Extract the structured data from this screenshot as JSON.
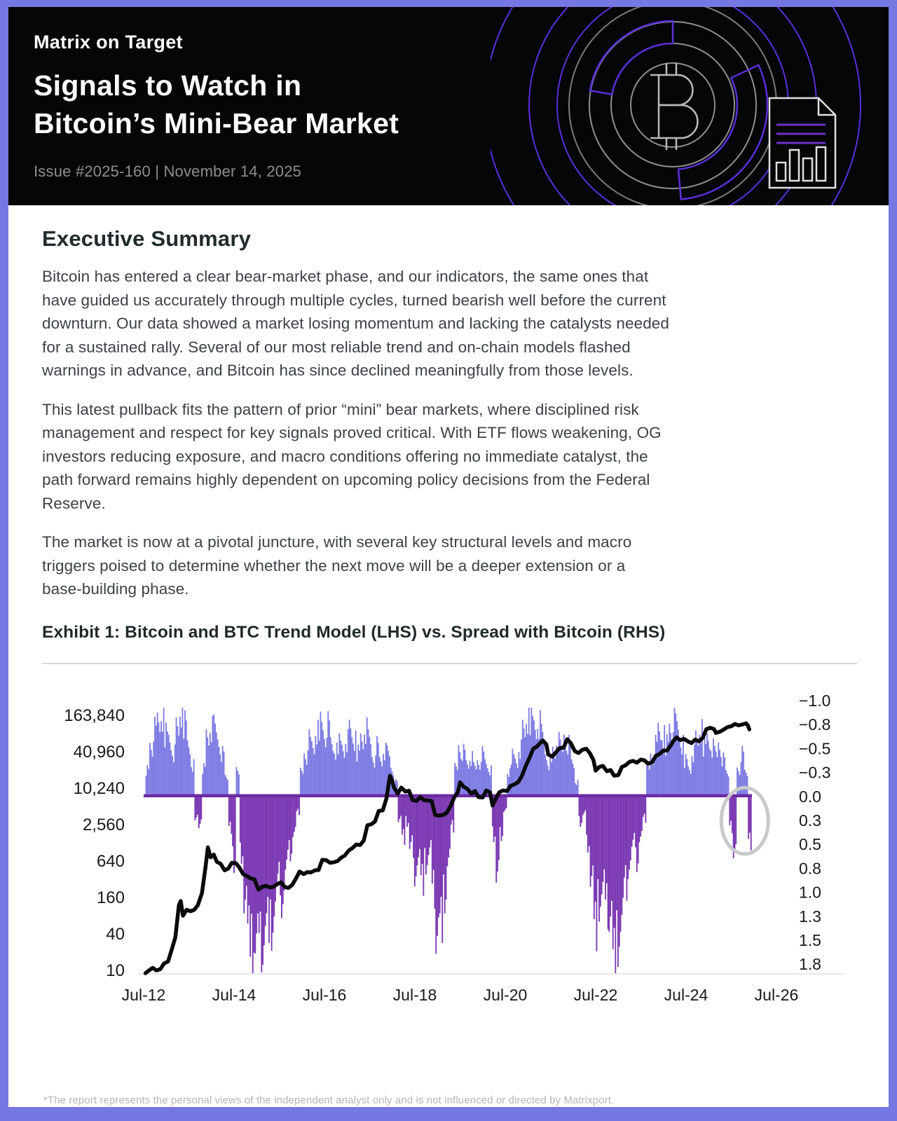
{
  "page": {
    "border_color": "#7577e2",
    "footer_note": "*The report represents the personal views of the independent analyst only and is not influenced or directed by Matrixport."
  },
  "header": {
    "kicker": "Matrix on Target",
    "title": "Signals to Watch in\nBitcoin’s Mini-Bear Market",
    "issue_line": "Issue #2025-160 | November 14, 2025"
  },
  "summary": {
    "heading": "Executive Summary",
    "paragraphs": [
      "Bitcoin has entered a clear bear-market phase, and our indicators, the same ones that\nhave guided us accurately through multiple cycles, turned bearish well before the current\ndownturn. Our data showed a market losing momentum and lacking the catalysts needed\nfor a sustained rally. Several of our most reliable trend and on-chain models flashed\nwarnings in advance, and Bitcoin has since declined meaningfully from those levels.",
      "This latest pullback fits the pattern of prior “mini” bear markets, where disciplined risk\nmanagement and respect for key signals proved critical. With ETF flows weakening, OG\ninvestors reducing exposure, and macro conditions offering no immediate catalyst, the\npath forward remains highly dependent on upcoming policy decisions from the Federal\nReserve.",
      "The market is now at a pivotal juncture, with several key structural levels and macro\ntriggers poised to determine whether the next move will be a deeper extension or a\nbase-building phase."
    ]
  },
  "exhibit": {
    "title": "Exhibit 1: Bitcoin and BTC Trend Model (LHS) vs. Spread with Bitcoin (RHS)"
  },
  "chart_data": {
    "type": "bar+line",
    "title": "Exhibit 1: Bitcoin and BTC Trend Model (LHS) vs. Spread with Bitcoin (RHS)",
    "grid": false,
    "legend": "none",
    "left_axis": {
      "series": "Bitcoin price (USD, log scale)",
      "scale": "log4",
      "ticks": [
        "163,840",
        "40,960",
        "10,240",
        "2,560",
        "640",
        "160",
        "40",
        "10"
      ],
      "tick_values": [
        163840,
        40960,
        10240,
        2560,
        640,
        160,
        40,
        10
      ]
    },
    "right_axis": {
      "series": "Spread with Bitcoin",
      "inverted": true,
      "ticks": [
        "−1.0",
        "−0.8",
        "−0.5",
        "−0.3",
        "0.0",
        "0.3",
        "0.5",
        "0.8",
        "1.0",
        "1.3",
        "1.5",
        "1.8"
      ],
      "tick_values": [
        -1.0,
        -0.75,
        -0.5,
        -0.25,
        0.0,
        0.25,
        0.5,
        0.75,
        1.0,
        1.25,
        1.5,
        1.75
      ]
    },
    "x_axis": {
      "ticks": [
        "Jul-12",
        "Jul-14",
        "Jul-16",
        "Jul-18",
        "Jul-20",
        "Jul-22",
        "Jul-24",
        "Jul-26"
      ],
      "tick_values": [
        2012.5,
        2014.5,
        2016.5,
        2018.5,
        2020.5,
        2022.5,
        2024.5,
        2026.5
      ]
    },
    "spread_bars": {
      "name": "BTC Trend Model spread with Bitcoin (RHS, inverted; blue = negative, purple = positive)",
      "negative_color": "#7e7ce3",
      "positive_color": "#7a38b2",
      "zero_line_color": "#6c2ba3",
      "start": 2012.54,
      "step": 0.0833,
      "values": [
        -0.3,
        -0.55,
        -0.7,
        -0.78,
        -0.85,
        -0.7,
        -0.62,
        -0.5,
        -0.72,
        -0.88,
        -0.8,
        -0.55,
        -0.35,
        0.22,
        0.35,
        -0.3,
        -0.65,
        -0.75,
        -0.72,
        -0.6,
        -0.45,
        -0.2,
        0.35,
        0.75,
        -0.3,
        0.6,
        1.1,
        1.45,
        1.7,
        1.6,
        1.72,
        1.55,
        1.3,
        1.45,
        1.2,
        0.95,
        1.1,
        0.8,
        0.6,
        0.4,
        0.18,
        -0.25,
        -0.45,
        -0.6,
        -0.52,
        -0.7,
        -0.82,
        -0.68,
        -0.75,
        -0.55,
        -0.48,
        -0.6,
        -0.52,
        -0.65,
        -0.7,
        -0.58,
        -0.48,
        -0.62,
        -0.75,
        -0.6,
        -0.42,
        -0.55,
        -0.38,
        -0.5,
        -0.45,
        -0.3,
        -0.15,
        0.25,
        0.45,
        0.3,
        0.55,
        0.8,
        0.65,
        0.9,
        0.75,
        0.6,
        1.1,
        1.45,
        1.3,
        1.1,
        0.7,
        0.35,
        -0.3,
        -0.55,
        -0.48,
        -0.35,
        -0.42,
        -0.3,
        -0.38,
        -0.45,
        -0.35,
        -0.28,
        0.45,
        0.9,
        0.4,
        0.15,
        -0.25,
        -0.45,
        -0.38,
        -0.55,
        -0.7,
        -0.8,
        -0.85,
        -0.75,
        -0.82,
        -0.65,
        -0.45,
        -0.35,
        -0.48,
        -0.6,
        -0.5,
        -0.65,
        -0.55,
        -0.35,
        -0.15,
        0.3,
        0.2,
        0.5,
        0.85,
        1.4,
        1.2,
        1.0,
        1.3,
        1.25,
        1.7,
        1.6,
        1.35,
        1.0,
        0.75,
        0.55,
        0.7,
        0.45,
        0.25,
        -0.3,
        -0.45,
        -0.55,
        -0.7,
        -0.65,
        -0.6,
        -0.75,
        -0.82,
        -0.7,
        -0.55,
        -0.4,
        -0.3,
        -0.5,
        -0.6,
        -0.68,
        -0.55,
        -0.62,
        -0.55,
        -0.45,
        -0.58,
        -0.4,
        -0.25,
        0.35,
        0.55,
        -0.3,
        -0.45,
        -0.25,
        0.5
      ]
    },
    "price_line": {
      "name": "Bitcoin (USD, LHS)",
      "color": "#0a0a0a",
      "points": [
        [
          2012.54,
          9
        ],
        [
          2012.62,
          10
        ],
        [
          2012.7,
          11
        ],
        [
          2012.78,
          10
        ],
        [
          2012.87,
          10.5
        ],
        [
          2012.95,
          13
        ],
        [
          2013.04,
          14
        ],
        [
          2013.12,
          22
        ],
        [
          2013.2,
          35
        ],
        [
          2013.28,
          120
        ],
        [
          2013.32,
          140
        ],
        [
          2013.37,
          80
        ],
        [
          2013.45,
          100
        ],
        [
          2013.54,
          95
        ],
        [
          2013.62,
          100
        ],
        [
          2013.7,
          120
        ],
        [
          2013.79,
          190
        ],
        [
          2013.87,
          520
        ],
        [
          2013.92,
          1080
        ],
        [
          2013.98,
          740
        ],
        [
          2014.05,
          820
        ],
        [
          2014.12,
          620
        ],
        [
          2014.2,
          580
        ],
        [
          2014.29,
          450
        ],
        [
          2014.37,
          480
        ],
        [
          2014.45,
          600
        ],
        [
          2014.54,
          590
        ],
        [
          2014.62,
          500
        ],
        [
          2014.7,
          390
        ],
        [
          2014.79,
          360
        ],
        [
          2014.87,
          330
        ],
        [
          2014.95,
          320
        ],
        [
          2015.04,
          215
        ],
        [
          2015.12,
          240
        ],
        [
          2015.2,
          250
        ],
        [
          2015.29,
          235
        ],
        [
          2015.37,
          240
        ],
        [
          2015.45,
          265
        ],
        [
          2015.54,
          285
        ],
        [
          2015.62,
          240
        ],
        [
          2015.7,
          230
        ],
        [
          2015.79,
          260
        ],
        [
          2015.87,
          330
        ],
        [
          2015.95,
          430
        ],
        [
          2016.04,
          390
        ],
        [
          2016.12,
          420
        ],
        [
          2016.2,
          415
        ],
        [
          2016.29,
          450
        ],
        [
          2016.37,
          455
        ],
        [
          2016.45,
          670
        ],
        [
          2016.54,
          660
        ],
        [
          2016.62,
          600
        ],
        [
          2016.7,
          610
        ],
        [
          2016.79,
          640
        ],
        [
          2016.87,
          730
        ],
        [
          2016.95,
          790
        ],
        [
          2017.04,
          960
        ],
        [
          2017.12,
          1050
        ],
        [
          2017.2,
          1200
        ],
        [
          2017.29,
          1180
        ],
        [
          2017.37,
          1400
        ],
        [
          2017.45,
          2500
        ],
        [
          2017.54,
          2600
        ],
        [
          2017.62,
          2900
        ],
        [
          2017.7,
          4300
        ],
        [
          2017.79,
          4400
        ],
        [
          2017.87,
          6900
        ],
        [
          2017.95,
          16500
        ],
        [
          2018.0,
          13500
        ],
        [
          2018.04,
          10500
        ],
        [
          2018.12,
          8300
        ],
        [
          2018.2,
          10500
        ],
        [
          2018.29,
          9000
        ],
        [
          2018.37,
          9300
        ],
        [
          2018.45,
          6500
        ],
        [
          2018.54,
          6300
        ],
        [
          2018.62,
          7300
        ],
        [
          2018.7,
          6500
        ],
        [
          2018.79,
          6400
        ],
        [
          2018.87,
          6300
        ],
        [
          2018.95,
          3700
        ],
        [
          2019.04,
          3600
        ],
        [
          2019.12,
          3700
        ],
        [
          2019.2,
          4000
        ],
        [
          2019.29,
          5200
        ],
        [
          2019.37,
          7200
        ],
        [
          2019.45,
          8800
        ],
        [
          2019.5,
          12800
        ],
        [
          2019.58,
          10800
        ],
        [
          2019.66,
          10000
        ],
        [
          2019.75,
          8300
        ],
        [
          2019.83,
          9200
        ],
        [
          2019.91,
          7300
        ],
        [
          2020.0,
          7200
        ],
        [
          2020.08,
          9400
        ],
        [
          2020.16,
          8800
        ],
        [
          2020.22,
          5300
        ],
        [
          2020.29,
          6900
        ],
        [
          2020.37,
          8800
        ],
        [
          2020.45,
          9400
        ],
        [
          2020.54,
          9200
        ],
        [
          2020.62,
          11200
        ],
        [
          2020.7,
          11800
        ],
        [
          2020.79,
          13000
        ],
        [
          2020.87,
          16500
        ],
        [
          2020.95,
          23500
        ],
        [
          2021.04,
          33000
        ],
        [
          2021.12,
          46000
        ],
        [
          2021.2,
          50000
        ],
        [
          2021.29,
          59000
        ],
        [
          2021.33,
          63000
        ],
        [
          2021.41,
          54000
        ],
        [
          2021.45,
          37000
        ],
        [
          2021.54,
          34000
        ],
        [
          2021.62,
          40000
        ],
        [
          2021.7,
          47000
        ],
        [
          2021.79,
          48000
        ],
        [
          2021.87,
          66000
        ],
        [
          2021.95,
          57000
        ],
        [
          2022.04,
          42000
        ],
        [
          2022.12,
          39000
        ],
        [
          2022.2,
          44000
        ],
        [
          2022.29,
          46000
        ],
        [
          2022.37,
          39000
        ],
        [
          2022.45,
          30000
        ],
        [
          2022.5,
          20000
        ],
        [
          2022.58,
          23000
        ],
        [
          2022.66,
          24000
        ],
        [
          2022.75,
          19500
        ],
        [
          2022.83,
          20500
        ],
        [
          2022.91,
          16500
        ],
        [
          2023.0,
          16800
        ],
        [
          2023.08,
          23000
        ],
        [
          2023.16,
          24500
        ],
        [
          2023.25,
          28000
        ],
        [
          2023.33,
          29000
        ],
        [
          2023.41,
          27000
        ],
        [
          2023.5,
          30500
        ],
        [
          2023.58,
          29500
        ],
        [
          2023.66,
          26000
        ],
        [
          2023.75,
          27500
        ],
        [
          2023.83,
          35000
        ],
        [
          2023.91,
          37500
        ],
        [
          2024.0,
          43000
        ],
        [
          2024.08,
          43000
        ],
        [
          2024.16,
          52000
        ],
        [
          2024.22,
          62000
        ],
        [
          2024.29,
          71000
        ],
        [
          2024.37,
          64000
        ],
        [
          2024.45,
          67000
        ],
        [
          2024.54,
          61000
        ],
        [
          2024.62,
          57000
        ],
        [
          2024.7,
          65000
        ],
        [
          2024.79,
          61000
        ],
        [
          2024.87,
          70000
        ],
        [
          2024.95,
          97000
        ],
        [
          2025.04,
          102000
        ],
        [
          2025.12,
          97000
        ],
        [
          2025.16,
          84000
        ],
        [
          2025.25,
          88000
        ],
        [
          2025.33,
          95000
        ],
        [
          2025.41,
          104000
        ],
        [
          2025.5,
          108000
        ],
        [
          2025.58,
          118000
        ],
        [
          2025.66,
          112000
        ],
        [
          2025.75,
          116000
        ],
        [
          2025.83,
          121000
        ],
        [
          2025.87,
          110000
        ],
        [
          2025.9,
          96000
        ]
      ]
    },
    "annotation": {
      "shape": "ellipse",
      "meaning": "highlights the latest spread dip (current mini-bear signal)",
      "t": 2025.8,
      "value": 0.26,
      "rx_years": 0.52,
      "ry_value": 0.345,
      "color": "#c9c9c9"
    }
  }
}
